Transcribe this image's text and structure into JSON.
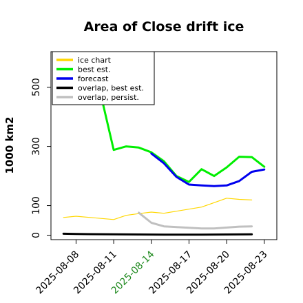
{
  "chart_data": {
    "type": "line",
    "title": "Area of Close drift ice",
    "xlabel": "",
    "ylabel": "1000 km2",
    "xlim": [
      "2025-08-06",
      "2025-08-24"
    ],
    "ylim": [
      -15,
      620
    ],
    "yticks": [
      0,
      100,
      300,
      500
    ],
    "xticks": [
      "2025-08-08",
      "2025-08-11",
      "2025-08-14",
      "2025-08-17",
      "2025-08-20",
      "2025-08-23"
    ],
    "highlight_tick": "2025-08-14",
    "grid": false,
    "legend_position": "upper-left",
    "series": [
      {
        "name": "ice chart",
        "color": "#FFD700",
        "width": 1.2,
        "x": [
          "2025-08-07",
          "2025-08-08",
          "2025-08-11",
          "2025-08-12",
          "2025-08-13",
          "2025-08-14",
          "2025-08-15",
          "2025-08-18",
          "2025-08-19",
          "2025-08-20",
          "2025-08-21",
          "2025-08-22"
        ],
        "y": [
          60,
          64,
          53,
          67,
          73,
          78,
          74,
          95,
          110,
          125,
          121,
          119
        ]
      },
      {
        "name": "best est.",
        "color": "#00EE00",
        "width": 3,
        "x": [
          "2025-08-10",
          "2025-08-11",
          "2025-08-12",
          "2025-08-13",
          "2025-08-14",
          "2025-08-15",
          "2025-08-16",
          "2025-08-17",
          "2025-08-18",
          "2025-08-19",
          "2025-08-20",
          "2025-08-21",
          "2025-08-22",
          "2025-08-23"
        ],
        "y": [
          470,
          288,
          300,
          296,
          280,
          250,
          200,
          180,
          223,
          200,
          229,
          265,
          264,
          231
        ]
      },
      {
        "name": "forecast",
        "color": "#0000EE",
        "width": 3,
        "x": [
          "2025-08-14",
          "2025-08-15",
          "2025-08-16",
          "2025-08-17",
          "2025-08-18",
          "2025-08-19",
          "2025-08-20",
          "2025-08-21",
          "2025-08-22",
          "2025-08-23"
        ],
        "y": [
          276,
          243,
          197,
          171,
          168,
          166,
          168,
          183,
          214,
          222
        ]
      },
      {
        "name": "overlap, best est.",
        "color": "#000000",
        "width": 3,
        "x": [
          "2025-08-07",
          "2025-08-08",
          "2025-08-11",
          "2025-08-15",
          "2025-08-18",
          "2025-08-22"
        ],
        "y": [
          5,
          4,
          3,
          2,
          2,
          3
        ]
      },
      {
        "name": "overlap, persist.",
        "color": "#C0C0C0",
        "width": 3,
        "x": [
          "2025-08-13",
          "2025-08-14",
          "2025-08-15",
          "2025-08-18",
          "2025-08-19",
          "2025-08-21",
          "2025-08-22"
        ],
        "y": [
          76,
          42,
          30,
          23,
          23,
          29,
          30
        ]
      }
    ]
  }
}
